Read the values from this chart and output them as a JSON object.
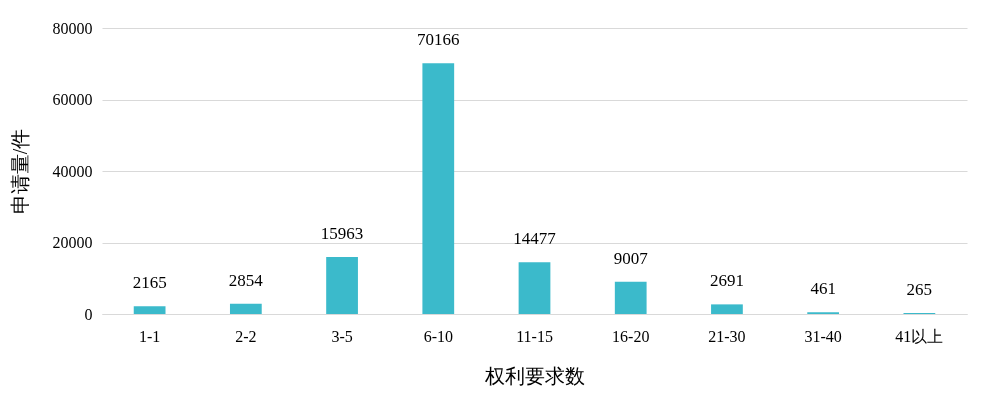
{
  "chart_data": {
    "type": "bar",
    "xlabel": "权利要求数",
    "ylabel": "申请量/件",
    "categories": [
      "1-1",
      "2-2",
      "3-5",
      "6-10",
      "11-15",
      "16-20",
      "21-30",
      "31-40",
      "41以上"
    ],
    "values": [
      2165,
      2854,
      15963,
      70166,
      14477,
      9007,
      2691,
      461,
      265
    ],
    "color": "#3bbacb",
    "ylim": [
      0,
      80000
    ],
    "yticks": [
      0,
      20000,
      40000,
      60000,
      80000
    ],
    "grid": "y",
    "data_labels": true
  }
}
